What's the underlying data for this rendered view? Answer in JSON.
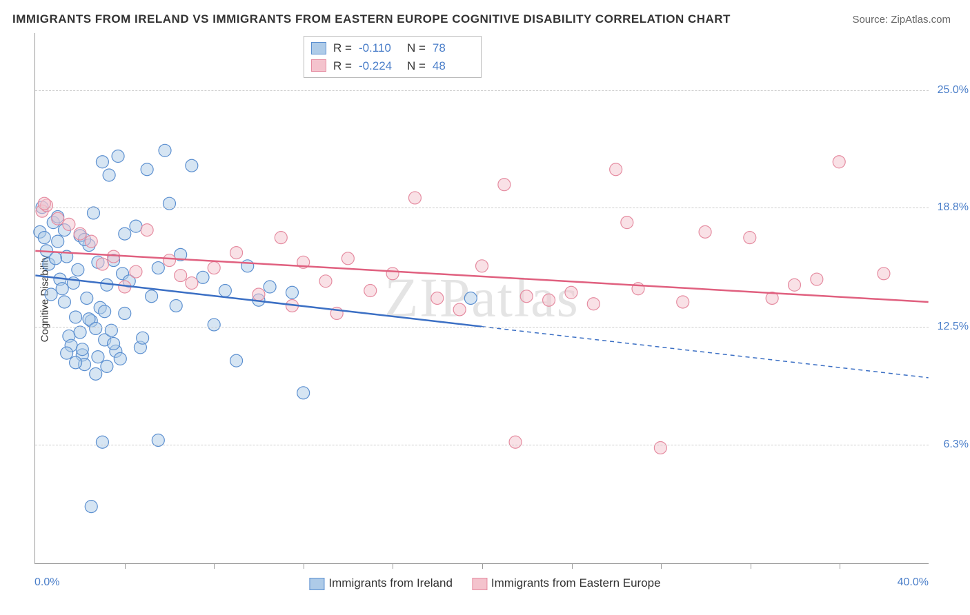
{
  "title": "IMMIGRANTS FROM IRELAND VS IMMIGRANTS FROM EASTERN EUROPE COGNITIVE DISABILITY CORRELATION CHART",
  "source": "Source: ZipAtlas.com",
  "y_axis_label": "Cognitive Disability",
  "watermark": "ZIPatlas",
  "chart": {
    "type": "scatter",
    "xlim": [
      0,
      40
    ],
    "ylim": [
      0,
      28
    ],
    "x_tick_min": "0.0%",
    "x_tick_max": "40.0%",
    "y_ticks": [
      {
        "value": 6.3,
        "label": "6.3%"
      },
      {
        "value": 12.5,
        "label": "12.5%"
      },
      {
        "value": 18.8,
        "label": "18.8%"
      },
      {
        "value": 25.0,
        "label": "25.0%"
      }
    ],
    "x_tick_positions": [
      4,
      8,
      12,
      16,
      20,
      24,
      28,
      32,
      36
    ],
    "background_color": "#ffffff",
    "grid_color": "#cccccc",
    "axis_color": "#999999",
    "tick_label_color": "#4a7ec9",
    "marker_radius": 9,
    "marker_opacity": 0.5,
    "line_width": 2.5,
    "series": [
      {
        "name": "Immigrants from Ireland",
        "fill_color": "#aecbe8",
        "stroke_color": "#5b8fd0",
        "line_color": "#3b6fc4",
        "R": "-0.110",
        "N": "78",
        "trend": {
          "x1": 0,
          "y1": 15.2,
          "x2": 20,
          "y2": 12.5,
          "solid_until_x": 20,
          "dash_to_x": 40,
          "dash_y2": 9.8
        },
        "points": [
          [
            0.2,
            17.5
          ],
          [
            0.3,
            18.8
          ],
          [
            0.4,
            17.2
          ],
          [
            0.5,
            16.5
          ],
          [
            0.6,
            15.8
          ],
          [
            0.7,
            14.2
          ],
          [
            0.8,
            18.0
          ],
          [
            1.0,
            17.0
          ],
          [
            1.1,
            15.0
          ],
          [
            1.2,
            14.5
          ],
          [
            1.3,
            13.8
          ],
          [
            1.4,
            16.2
          ],
          [
            1.5,
            12.0
          ],
          [
            1.6,
            11.5
          ],
          [
            1.7,
            14.8
          ],
          [
            1.8,
            13.0
          ],
          [
            1.9,
            15.5
          ],
          [
            2.0,
            17.3
          ],
          [
            2.1,
            11.0
          ],
          [
            2.2,
            10.5
          ],
          [
            2.3,
            14.0
          ],
          [
            2.4,
            16.8
          ],
          [
            2.5,
            12.8
          ],
          [
            2.6,
            18.5
          ],
          [
            2.7,
            10.0
          ],
          [
            2.8,
            15.9
          ],
          [
            2.9,
            13.5
          ],
          [
            3.0,
            21.2
          ],
          [
            3.1,
            11.8
          ],
          [
            3.2,
            14.7
          ],
          [
            3.3,
            20.5
          ],
          [
            3.4,
            12.3
          ],
          [
            3.5,
            16.0
          ],
          [
            3.6,
            11.2
          ],
          [
            3.7,
            21.5
          ],
          [
            3.8,
            10.8
          ],
          [
            3.9,
            15.3
          ],
          [
            4.0,
            13.2
          ],
          [
            4.2,
            14.9
          ],
          [
            4.5,
            17.8
          ],
          [
            4.7,
            11.4
          ],
          [
            5.0,
            20.8
          ],
          [
            5.2,
            14.1
          ],
          [
            5.5,
            15.6
          ],
          [
            5.8,
            21.8
          ],
          [
            6.0,
            19.0
          ],
          [
            6.3,
            13.6
          ],
          [
            6.5,
            16.3
          ],
          [
            7.0,
            21.0
          ],
          [
            7.5,
            15.1
          ],
          [
            8.0,
            12.6
          ],
          [
            8.5,
            14.4
          ],
          [
            9.0,
            10.7
          ],
          [
            9.5,
            15.7
          ],
          [
            10.0,
            13.9
          ],
          [
            10.5,
            14.6
          ],
          [
            11.5,
            14.3
          ],
          [
            12.0,
            9.0
          ],
          [
            1.4,
            11.1
          ],
          [
            2.1,
            11.3
          ],
          [
            2.8,
            10.9
          ],
          [
            3.2,
            10.4
          ],
          [
            1.8,
            10.6
          ],
          [
            5.5,
            6.5
          ],
          [
            3.0,
            6.4
          ],
          [
            2.5,
            3.0
          ],
          [
            2.0,
            12.2
          ],
          [
            2.4,
            12.9
          ],
          [
            2.7,
            12.4
          ],
          [
            3.1,
            13.3
          ],
          [
            3.5,
            11.6
          ],
          [
            4.8,
            11.9
          ],
          [
            19.5,
            14.0
          ],
          [
            1.0,
            18.3
          ],
          [
            1.3,
            17.6
          ],
          [
            0.9,
            16.1
          ],
          [
            2.2,
            17.1
          ],
          [
            4.0,
            17.4
          ]
        ]
      },
      {
        "name": "Immigrants from Eastern Europe",
        "fill_color": "#f4c3cd",
        "stroke_color": "#e58ba0",
        "line_color": "#e0607f",
        "R": "-0.224",
        "N": "48",
        "trend": {
          "x1": 0,
          "y1": 16.5,
          "x2": 40,
          "y2": 13.8,
          "solid_until_x": 40
        },
        "points": [
          [
            0.3,
            18.6
          ],
          [
            0.5,
            18.9
          ],
          [
            1.0,
            18.2
          ],
          [
            1.5,
            17.9
          ],
          [
            2.0,
            17.4
          ],
          [
            2.5,
            17.0
          ],
          [
            3.0,
            15.8
          ],
          [
            3.5,
            16.2
          ],
          [
            4.0,
            14.6
          ],
          [
            4.5,
            15.4
          ],
          [
            5.0,
            17.6
          ],
          [
            6.0,
            16.0
          ],
          [
            6.5,
            15.2
          ],
          [
            7.0,
            14.8
          ],
          [
            8.0,
            15.6
          ],
          [
            9.0,
            16.4
          ],
          [
            10.0,
            14.2
          ],
          [
            11.0,
            17.2
          ],
          [
            11.5,
            13.6
          ],
          [
            12.0,
            15.9
          ],
          [
            13.0,
            14.9
          ],
          [
            13.5,
            13.2
          ],
          [
            14.0,
            16.1
          ],
          [
            15.0,
            14.4
          ],
          [
            16.0,
            15.3
          ],
          [
            17.0,
            19.3
          ],
          [
            18.0,
            14.0
          ],
          [
            19.0,
            13.4
          ],
          [
            20.0,
            15.7
          ],
          [
            21.0,
            20.0
          ],
          [
            21.5,
            6.4
          ],
          [
            22.0,
            14.1
          ],
          [
            23.0,
            13.9
          ],
          [
            24.0,
            14.3
          ],
          [
            25.0,
            13.7
          ],
          [
            26.0,
            20.8
          ],
          [
            26.5,
            18.0
          ],
          [
            27.0,
            14.5
          ],
          [
            28.0,
            6.1
          ],
          [
            29.0,
            13.8
          ],
          [
            30.0,
            17.5
          ],
          [
            32.0,
            17.2
          ],
          [
            33.0,
            14.0
          ],
          [
            34.0,
            14.7
          ],
          [
            35.0,
            15.0
          ],
          [
            36.0,
            21.2
          ],
          [
            38.0,
            15.3
          ],
          [
            0.4,
            19.0
          ]
        ]
      }
    ]
  },
  "stats_box": {
    "R_label": "R =",
    "N_label": "N ="
  },
  "bottom_legend": {
    "items": [
      "Immigrants from Ireland",
      "Immigrants from Eastern Europe"
    ]
  }
}
